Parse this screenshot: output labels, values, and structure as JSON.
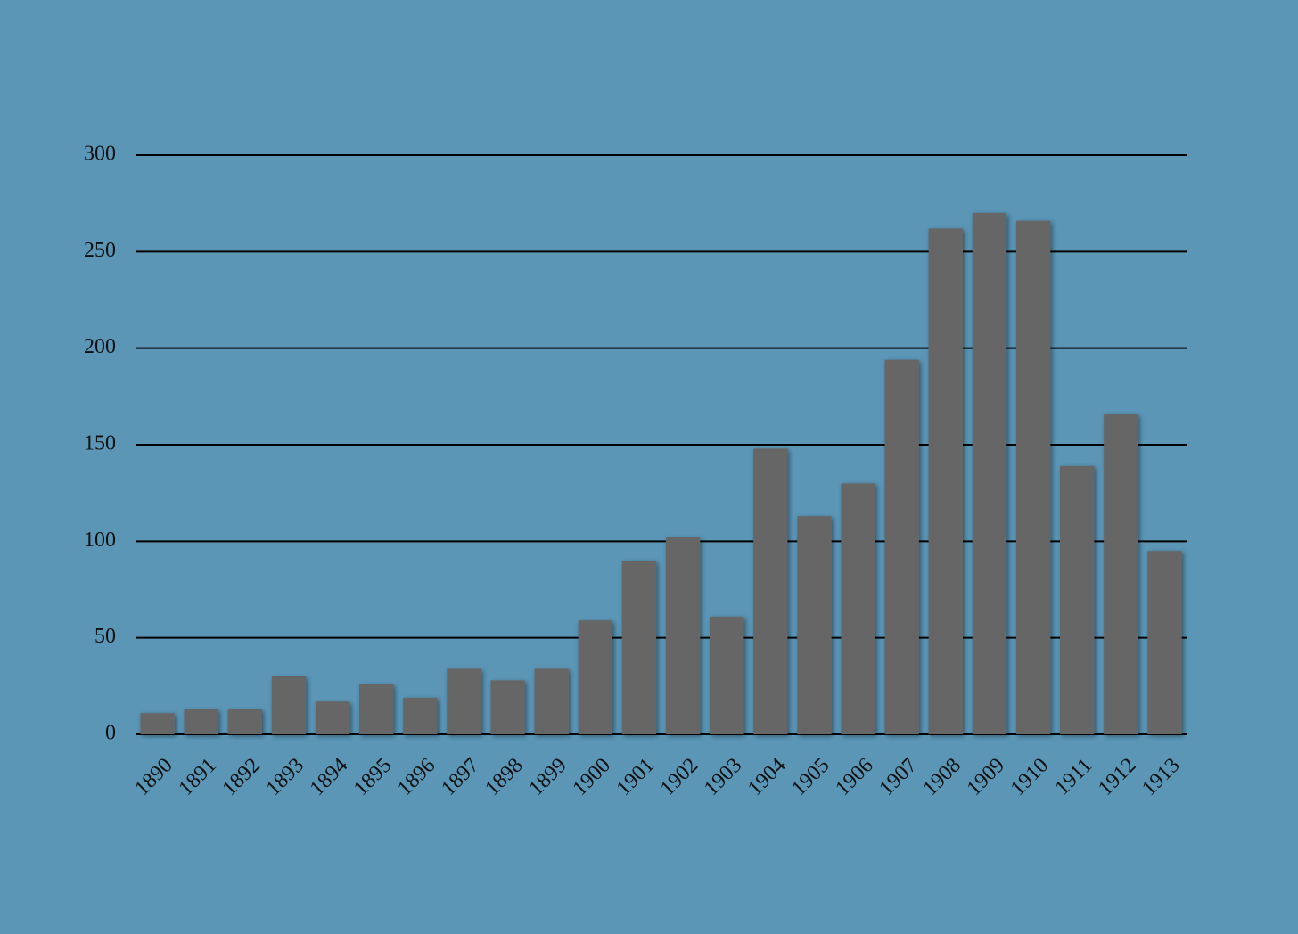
{
  "chart_data": {
    "type": "bar",
    "categories": [
      "1890",
      "1891",
      "1892",
      "1893",
      "1894",
      "1895",
      "1896",
      "1897",
      "1898",
      "1899",
      "1900",
      "1901",
      "1902",
      "1903",
      "1904",
      "1905",
      "1906",
      "1907",
      "1908",
      "1909",
      "1910",
      "1911",
      "1912",
      "1913"
    ],
    "values": [
      11,
      13,
      13,
      30,
      17,
      26,
      19,
      34,
      28,
      34,
      59,
      90,
      102,
      61,
      148,
      113,
      130,
      194,
      262,
      270,
      266,
      139,
      166,
      95
    ],
    "color": "#666666",
    "ylim": [
      0,
      300
    ],
    "yticks": [
      0,
      50,
      100,
      150,
      200,
      250,
      300
    ],
    "grid": true
  }
}
